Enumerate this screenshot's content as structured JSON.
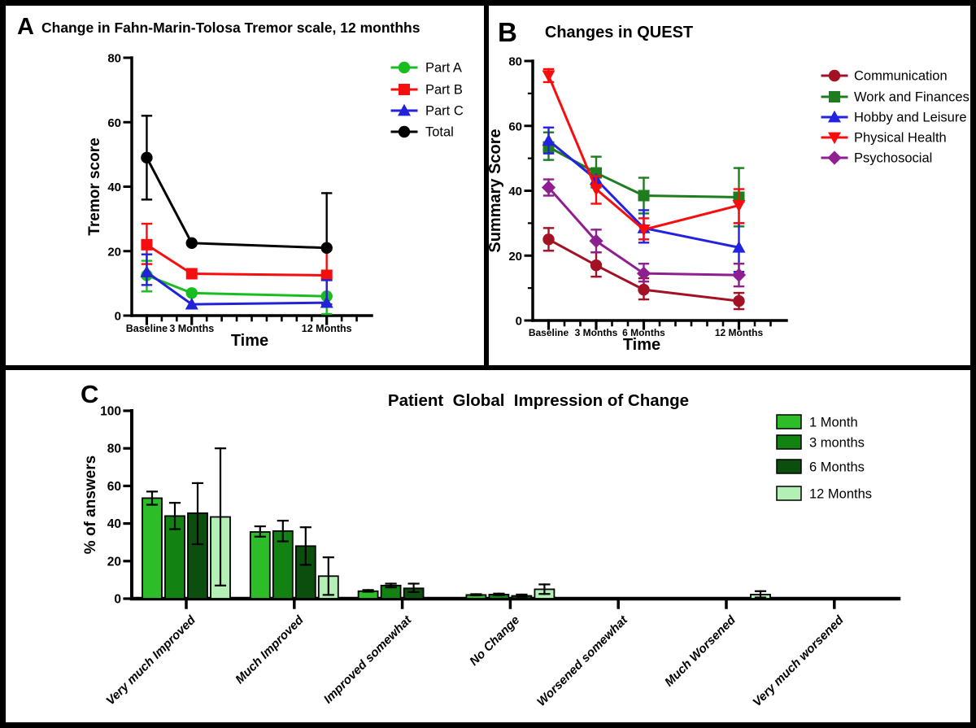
{
  "figure": {
    "background": "#ffffff",
    "border_color": "#000000",
    "panels": [
      {
        "id": "A",
        "letter": "A"
      },
      {
        "id": "B",
        "letter": "B"
      },
      {
        "id": "C",
        "letter": "C"
      }
    ]
  },
  "chart_data": [
    {
      "panel": "A",
      "type": "line",
      "title": "Change in Fahn-Marin-Tolosa Tremor scale, 12 monthhs",
      "xlabel": "Time",
      "ylabel": "Tremor score",
      "ylim": [
        0,
        80
      ],
      "yticks": [
        0,
        20,
        40,
        60,
        80
      ],
      "xlim": [
        -1,
        15
      ],
      "x_points": [
        0,
        3,
        12
      ],
      "x_tick_labels": [
        {
          "x": 0,
          "label": "Baseline"
        },
        {
          "x": 3,
          "label": "3 Months"
        },
        {
          "x": 12,
          "label": "12 Months"
        }
      ],
      "legend_position": "right-top",
      "grid": false,
      "series": [
        {
          "name": "Part A",
          "marker": "circle",
          "color": "#1abd20",
          "values": [
            12.5,
            7,
            6
          ],
          "err": [
            [
              7.5,
              17
            ],
            null,
            [
              0.5,
              11
            ]
          ]
        },
        {
          "name": "Part B",
          "marker": "square",
          "color": "#f70d0e",
          "values": [
            22,
            13,
            12.5
          ],
          "err": [
            [
              16,
              28.5
            ],
            null,
            [
              3.5,
              21
            ]
          ]
        },
        {
          "name": "Part C",
          "marker": "triangle-up",
          "color": "#2222d8",
          "values": [
            13.5,
            3.5,
            4
          ],
          "err": [
            [
              9.5,
              19
            ],
            null,
            [
              3.5,
              11
            ]
          ]
        },
        {
          "name": "Total",
          "marker": "circle",
          "color": "#000000",
          "values": [
            49,
            22.5,
            21
          ],
          "err": [
            [
              36,
              62
            ],
            null,
            [
              20.5,
              38
            ]
          ]
        }
      ]
    },
    {
      "panel": "B",
      "type": "line",
      "title": "Changes in QUEST",
      "xlabel": "Time",
      "ylabel": "Summary Score",
      "ylim": [
        0,
        80
      ],
      "yticks": [
        0,
        20,
        40,
        60,
        80
      ],
      "y_minor_ticks": [
        10,
        30,
        50,
        70
      ],
      "xlim": [
        -1,
        15
      ],
      "x_points": [
        0,
        3,
        6,
        12
      ],
      "x_tick_labels": [
        {
          "x": 0,
          "label": "Baseline"
        },
        {
          "x": 3,
          "label": "3 Months"
        },
        {
          "x": 6,
          "label": "6 Months"
        },
        {
          "x": 12,
          "label": "12 Months"
        }
      ],
      "legend_position": "right-top",
      "grid": false,
      "series": [
        {
          "name": "Communication",
          "marker": "circle",
          "color": "#a21224",
          "values": [
            25,
            17,
            9.5,
            6
          ],
          "err": [
            [
              21.5,
              28.5
            ],
            [
              13.5,
              21
            ],
            [
              6.5,
              13
            ],
            [
              3.5,
              8.5
            ]
          ]
        },
        {
          "name": "Work and Finances",
          "marker": "square",
          "color": "#1f7d20",
          "values": [
            53.5,
            45.5,
            38.5,
            38
          ],
          "err": [
            [
              49.5,
              58
            ],
            [
              41,
              50.5
            ],
            [
              33,
              44
            ],
            [
              29,
              47
            ]
          ]
        },
        {
          "name": "Hobby and Leisure",
          "marker": "triangle-up",
          "color": "#2222e0",
          "values": [
            55.5,
            43.5,
            28.5,
            22.5
          ],
          "err": [
            [
              51.5,
              59.5
            ],
            null,
            [
              24,
              34
            ],
            [
              15,
              30
            ]
          ]
        },
        {
          "name": "Physical Health",
          "marker": "triangle-down",
          "color": "#f70d0e",
          "values": [
            75.5,
            40.5,
            28,
            35.5
          ],
          "err": [
            [
              73.5,
              77.5
            ],
            [
              36,
              44.5
            ],
            [
              25,
              31.5
            ],
            [
              30,
              40.5
            ]
          ]
        },
        {
          "name": "Psychosocial",
          "marker": "diamond",
          "color": "#8f1f91",
          "values": [
            41,
            24.5,
            14.5,
            14
          ],
          "err": [
            [
              38.5,
              43.5
            ],
            [
              21,
              28
            ],
            [
              12,
              17.5
            ],
            [
              10.5,
              17.5
            ]
          ]
        }
      ]
    },
    {
      "panel": "C",
      "type": "bar",
      "title": "Patient  Global  Impression of Change",
      "xlabel": "",
      "ylabel": "% of answers",
      "ylim": [
        0,
        100
      ],
      "yticks": [
        0,
        20,
        40,
        60,
        80,
        100
      ],
      "legend_position": "right-top",
      "grid": false,
      "categories": [
        "Very much Improved",
        "Much Improved",
        "Improved somewhat",
        "No Change",
        "Worsened somewhat",
        "Much Worsened",
        "Very much worsened"
      ],
      "series": [
        {
          "name": "1 Month",
          "color": "#2cbd28",
          "values": [
            53.5,
            35.5,
            4,
            2,
            0,
            0,
            0
          ],
          "err": [
            [
              50,
              57
            ],
            [
              33,
              38.5
            ],
            [
              3.7,
              4.6
            ],
            [
              1.8,
              2.4
            ],
            null,
            null,
            null
          ]
        },
        {
          "name": "3 months",
          "color": "#128212",
          "values": [
            44,
            36,
            7,
            2.2,
            0,
            0,
            0
          ],
          "err": [
            [
              37,
              51
            ],
            [
              30.5,
              41.5
            ],
            [
              6,
              8
            ],
            [
              1.9,
              2.7
            ],
            null,
            null,
            null
          ]
        },
        {
          "name": "6 Months",
          "color": "#0b4e0e",
          "values": [
            45.5,
            28,
            5.5,
            1.5,
            0,
            0,
            0
          ],
          "err": [
            [
              29,
              61.5
            ],
            [
              18,
              38
            ],
            [
              3.5,
              8
            ],
            [
              1,
              2.2
            ],
            null,
            null,
            null
          ]
        },
        {
          "name": "12 Months",
          "color": "#b4f0b6",
          "values": [
            43.5,
            12,
            0,
            5,
            0,
            2.2,
            0
          ],
          "err": [
            [
              7,
              80
            ],
            [
              2,
              22
            ],
            null,
            [
              2.5,
              7.6
            ],
            null,
            [
              0.6,
              4
            ],
            null
          ]
        }
      ]
    }
  ]
}
